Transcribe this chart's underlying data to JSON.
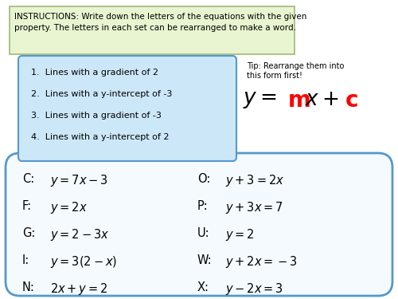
{
  "bg_color": "#ffffff",
  "instructions_bg": "#e8f5d0",
  "instructions_border": "#a0b878",
  "instructions_text_line1": "INSTRUCTIONS: Write down the letters of the equations with the given",
  "instructions_text_line2": "property. The letters in each set can be rearranged to make a word.",
  "tip_text": "Tip: Rearrange them into\nthis form first!",
  "list_bg": "#cce8f8",
  "list_border": "#5599cc",
  "list_items": [
    "1.  Lines with a gradient of 2",
    "2.  Lines with a y-intercept of -3",
    "3.  Lines with a gradient of -3",
    "4.  Lines with a y-intercept of 2"
  ],
  "equations_border": "#5599cc",
  "equations_bg": "#f5faff",
  "left_letters": [
    "C",
    "F",
    "G",
    "I",
    "N"
  ],
  "left_formulas": [
    "$y = 7x - 3$",
    "$y = 2x$",
    "$y = 2 - 3x$",
    "$y = 3(2 - x)$",
    "$2x + y = 2$"
  ],
  "right_letters": [
    "O",
    "P",
    "U",
    "W",
    "X"
  ],
  "right_formulas": [
    "$y + 3 = 2x$",
    "$y + 3x = 7$",
    "$y = 2$",
    "$y + 2x = -3$",
    "$y - 2x = 3$"
  ]
}
